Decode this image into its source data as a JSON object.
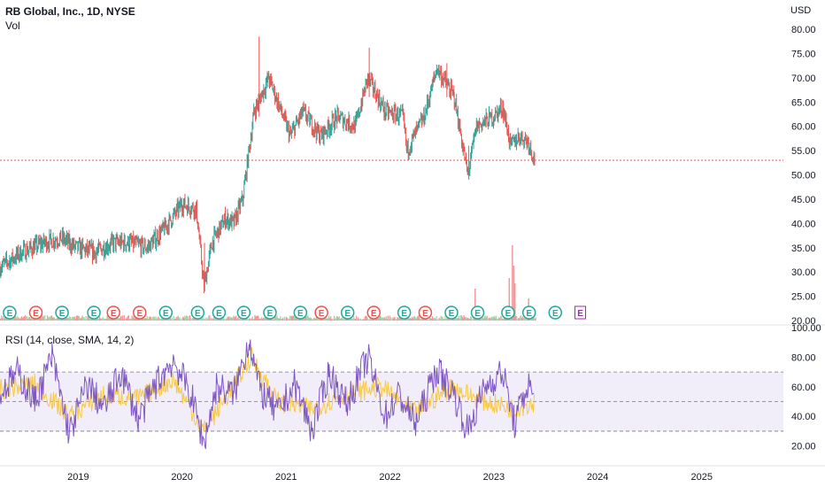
{
  "header": {
    "symbol_line": "RB Global, Inc., 1D, NYSE",
    "volume_label": "Vol",
    "currency": "USD"
  },
  "rsi_label": "RSI (14, close, SMA, 14, 2)",
  "colors": {
    "up": "#26a69a",
    "down": "#ef5350",
    "rsi_line": "#7e57c2",
    "rsi_sma": "#f7c948",
    "rsi_band": "#ede7f6",
    "price_line": "#ef5350",
    "earnings_green": "#26a69a",
    "earnings_red": "#ef5350",
    "earnings_future": "#9c27b0"
  },
  "chart_data": [
    {
      "type": "candlestick",
      "title": "RB Global, Inc., 1D, NYSE",
      "ylabel": "USD",
      "ylim": [
        20,
        80
      ],
      "y_ticks": [
        "80.00",
        "75.00",
        "70.00",
        "65.00",
        "60.00",
        "55.00",
        "50.00",
        "45.00",
        "40.00",
        "35.00",
        "30.00",
        "25.00",
        "20.00"
      ],
      "x_ticks": [
        "2019",
        "2020",
        "2021",
        "2022",
        "2023",
        "2024",
        "2025"
      ],
      "x_range": [
        "2018-04-01",
        "2025-10-15"
      ],
      "current_price_line": 53,
      "series": [
        {
          "x": [
            "2018-04-01",
            "2018-06-15",
            "2018-09-01",
            "2018-11-01",
            "2018-12-25",
            "2019-03-01",
            "2019-05-01",
            "2019-07-01",
            "2019-09-01",
            "2019-11-01",
            "2020-01-01",
            "2020-02-20",
            "2020-03-18",
            "2020-04-15",
            "2020-06-01",
            "2020-07-01",
            "2020-08-01",
            "2020-09-10",
            "2020-11-01",
            "2021-01-15",
            "2021-03-01",
            "2021-05-01",
            "2021-07-01",
            "2021-09-01",
            "2021-10-15",
            "2021-12-15",
            "2022-02-15",
            "2022-03-01",
            "2022-05-01",
            "2022-06-15",
            "2022-08-15",
            "2022-10-01",
            "2022-11-01",
            "2023-01-01",
            "2023-02-01",
            "2023-03-01",
            "2023-04-01",
            "2023-05-01",
            "2023-05-25"
          ],
          "values": [
            31,
            34,
            36,
            37,
            35,
            34,
            36,
            36,
            35,
            39,
            44,
            43,
            27,
            36,
            41,
            40,
            45,
            63,
            70,
            58,
            63,
            58,
            62,
            60,
            70,
            63,
            62,
            55,
            62,
            72,
            66,
            50,
            60,
            62,
            64,
            56,
            58,
            57,
            53
          ]
        }
      ],
      "earnings": [
        {
          "x": "2018-05-05",
          "kind": "green"
        },
        {
          "x": "2018-08-05",
          "kind": "red"
        },
        {
          "x": "2018-11-05",
          "kind": "green"
        },
        {
          "x": "2019-02-25",
          "kind": "green"
        },
        {
          "x": "2019-05-05",
          "kind": "red"
        },
        {
          "x": "2019-08-05",
          "kind": "red"
        },
        {
          "x": "2019-11-05",
          "kind": "green"
        },
        {
          "x": "2020-02-25",
          "kind": "green"
        },
        {
          "x": "2020-05-10",
          "kind": "green"
        },
        {
          "x": "2020-08-05",
          "kind": "green"
        },
        {
          "x": "2020-11-05",
          "kind": "green"
        },
        {
          "x": "2021-02-20",
          "kind": "green"
        },
        {
          "x": "2021-05-05",
          "kind": "red"
        },
        {
          "x": "2021-08-05",
          "kind": "green"
        },
        {
          "x": "2021-11-05",
          "kind": "red"
        },
        {
          "x": "2022-02-20",
          "kind": "green"
        },
        {
          "x": "2022-05-05",
          "kind": "red"
        },
        {
          "x": "2022-08-05",
          "kind": "green"
        },
        {
          "x": "2022-11-05",
          "kind": "green"
        },
        {
          "x": "2023-02-20",
          "kind": "green"
        },
        {
          "x": "2023-05-05",
          "kind": "green"
        },
        {
          "x": "2023-08-05",
          "kind": "green"
        },
        {
          "x": "2023-11-01",
          "kind": "future"
        }
      ]
    },
    {
      "type": "line",
      "title": "RSI (14, close, SMA, 14, 2)",
      "ylim": [
        15,
        100
      ],
      "y_ticks": [
        "100.00",
        "80.00",
        "60.00",
        "40.00",
        "20.00"
      ],
      "levels": [
        30,
        50,
        70
      ],
      "series": [
        {
          "x": [
            "2018-04-01",
            "2018-06-01",
            "2018-08-01",
            "2018-10-01",
            "2018-12-01",
            "2019-02-01",
            "2019-04-01",
            "2019-06-01",
            "2019-08-01",
            "2019-10-01",
            "2019-12-01",
            "2020-02-01",
            "2020-03-18",
            "2020-05-01",
            "2020-07-01",
            "2020-08-25",
            "2020-10-01",
            "2020-12-01",
            "2021-02-01",
            "2021-04-01",
            "2021-06-01",
            "2021-08-01",
            "2021-10-15",
            "2021-12-15",
            "2022-02-01",
            "2022-04-01",
            "2022-06-15",
            "2022-08-15",
            "2022-10-01",
            "2022-12-01",
            "2023-02-01",
            "2023-03-15",
            "2023-05-01",
            "2023-05-25"
          ],
          "values": [
            55,
            70,
            50,
            80,
            28,
            62,
            45,
            70,
            38,
            62,
            78,
            55,
            22,
            60,
            55,
            92,
            58,
            42,
            62,
            30,
            70,
            48,
            80,
            40,
            55,
            35,
            72,
            55,
            30,
            60,
            70,
            35,
            62,
            52
          ]
        },
        {
          "x": [
            "2018-04-01",
            "2018-08-01",
            "2018-12-01",
            "2019-04-01",
            "2019-08-01",
            "2019-12-01",
            "2020-03-18",
            "2020-06-01",
            "2020-09-01",
            "2020-12-01",
            "2021-04-01",
            "2021-08-01",
            "2021-12-01",
            "2022-04-01",
            "2022-08-01",
            "2022-12-01",
            "2023-03-15",
            "2023-05-25"
          ],
          "values": [
            58,
            62,
            40,
            55,
            52,
            65,
            30,
            52,
            80,
            50,
            45,
            55,
            60,
            42,
            60,
            50,
            45,
            50
          ]
        }
      ]
    }
  ]
}
